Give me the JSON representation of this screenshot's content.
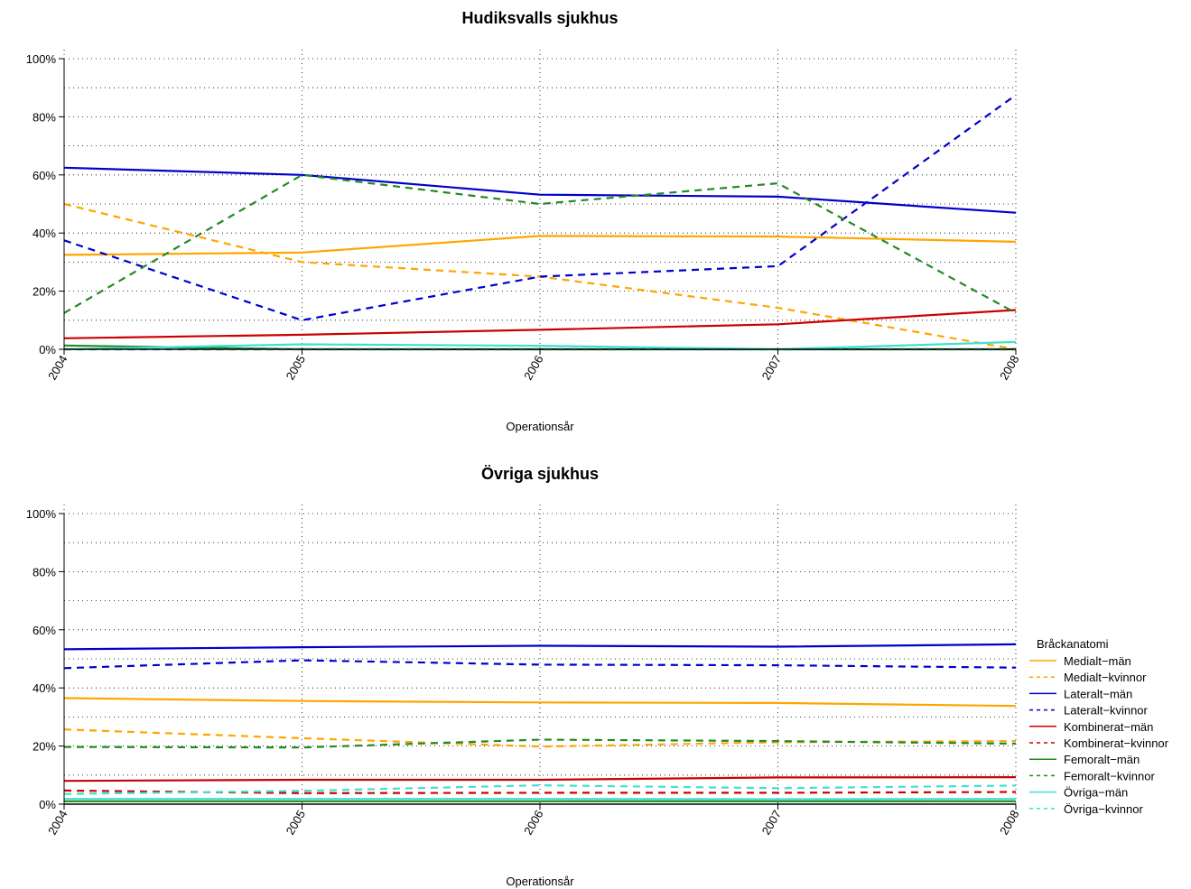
{
  "legend": {
    "title": "Bråckanatomi"
  },
  "chart_data": [
    {
      "type": "line",
      "title": "Hudiksvalls sjukhus",
      "xlabel": "Operationsår",
      "ylabel": "",
      "x": [
        "2004",
        "2005",
        "2006",
        "2007",
        "2008"
      ],
      "ylim": [
        0,
        100
      ],
      "yticks": [
        "0%",
        "20%",
        "40%",
        "60%",
        "80%",
        "100%"
      ],
      "grid": true,
      "series": [
        {
          "name": "Medialt−män",
          "color": "#FFA500",
          "dash": false,
          "values": [
            32.5,
            33.3,
            39.0,
            38.8,
            37.0
          ]
        },
        {
          "name": "Medialt−kvinnor",
          "color": "#FFA500",
          "dash": true,
          "values": [
            50.0,
            30.0,
            25.0,
            14.3,
            0.0
          ]
        },
        {
          "name": "Lateralt−män",
          "color": "#0000CD",
          "dash": false,
          "values": [
            62.5,
            60.0,
            53.2,
            52.5,
            47.0
          ]
        },
        {
          "name": "Lateralt−kvinnor",
          "color": "#0000CD",
          "dash": true,
          "values": [
            37.5,
            10.0,
            25.0,
            28.6,
            87.5
          ]
        },
        {
          "name": "Kombinerat−män",
          "color": "#CD0000",
          "dash": false,
          "values": [
            3.8,
            5.0,
            6.7,
            8.6,
            13.5
          ]
        },
        {
          "name": "Kombinerat−kvinnor",
          "color": "#CD0000",
          "dash": true,
          "values": [
            0,
            0,
            0,
            0,
            0
          ]
        },
        {
          "name": "Femoralt−män",
          "color": "#228B22",
          "dash": false,
          "values": [
            1.3,
            0.0,
            0.0,
            0.0,
            0.0
          ]
        },
        {
          "name": "Femoralt−kvinnor",
          "color": "#228B22",
          "dash": true,
          "values": [
            12.5,
            60.0,
            50.0,
            57.1,
            12.5
          ]
        },
        {
          "name": "Övriga−män",
          "color": "#40E0D0",
          "dash": false,
          "values": [
            0.0,
            1.7,
            1.2,
            0.0,
            2.5
          ]
        },
        {
          "name": "Övriga−kvinnor",
          "color": "#40E0D0",
          "dash": true,
          "values": [
            0,
            0,
            0,
            0,
            0
          ]
        }
      ]
    },
    {
      "type": "line",
      "title": "Övriga sjukhus",
      "xlabel": "Operationsår",
      "ylabel": "",
      "x": [
        "2004",
        "2005",
        "2006",
        "2007",
        "2008"
      ],
      "ylim": [
        0,
        100
      ],
      "yticks": [
        "0%",
        "20%",
        "40%",
        "60%",
        "80%",
        "100%"
      ],
      "grid": true,
      "legend_position": "right",
      "series": [
        {
          "name": "Medialt−män",
          "color": "#FFA500",
          "dash": false,
          "values": [
            36.5,
            35.5,
            35.0,
            34.8,
            33.8
          ]
        },
        {
          "name": "Medialt−kvinnor",
          "color": "#FFA500",
          "dash": true,
          "values": [
            25.7,
            22.7,
            19.8,
            21.3,
            21.7
          ]
        },
        {
          "name": "Lateralt−män",
          "color": "#0000CD",
          "dash": false,
          "values": [
            53.3,
            54.0,
            54.5,
            54.2,
            55.0
          ]
        },
        {
          "name": "Lateralt−kvinnor",
          "color": "#0000CD",
          "dash": true,
          "values": [
            46.8,
            49.5,
            48.0,
            47.8,
            47.0
          ]
        },
        {
          "name": "Kombinerat−män",
          "color": "#CD0000",
          "dash": false,
          "values": [
            8.0,
            8.4,
            8.4,
            9.2,
            9.3
          ]
        },
        {
          "name": "Kombinerat−kvinnor",
          "color": "#CD0000",
          "dash": true,
          "values": [
            4.7,
            3.8,
            3.9,
            3.9,
            4.2
          ]
        },
        {
          "name": "Femoralt−män",
          "color": "#228B22",
          "dash": false,
          "values": [
            1.0,
            1.0,
            1.0,
            1.0,
            1.0
          ]
        },
        {
          "name": "Femoralt−kvinnor",
          "color": "#228B22",
          "dash": true,
          "values": [
            19.7,
            19.5,
            22.2,
            21.7,
            20.8
          ]
        },
        {
          "name": "Övriga−män",
          "color": "#40E0D0",
          "dash": false,
          "values": [
            1.8,
            1.8,
            1.8,
            1.7,
            1.8
          ]
        },
        {
          "name": "Övriga−kvinnor",
          "color": "#40E0D0",
          "dash": true,
          "values": [
            3.5,
            4.6,
            6.5,
            5.5,
            6.4
          ]
        }
      ]
    }
  ]
}
